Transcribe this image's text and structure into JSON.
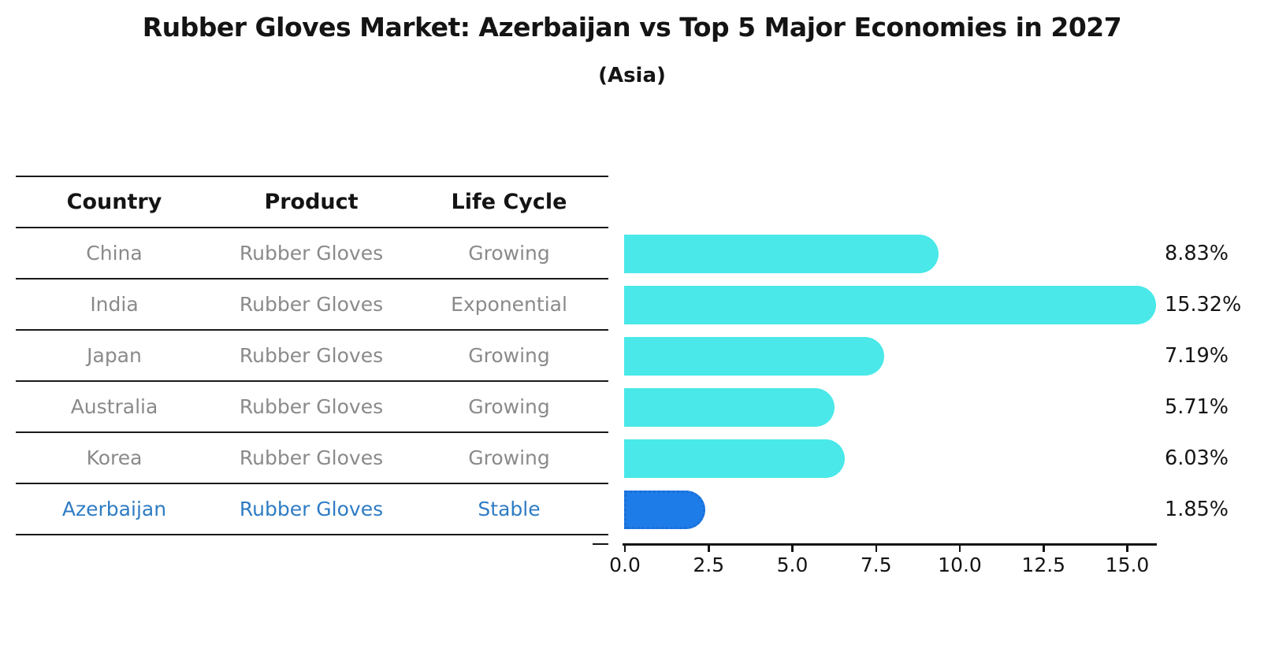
{
  "title": "Rubber Gloves Market: Azerbaijan vs Top 5 Major Economies in 2027",
  "subtitle": "(Asia)",
  "table": {
    "headers": [
      "Country",
      "Product",
      "Life Cycle"
    ],
    "rows": [
      {
        "country": "China",
        "product": "Rubber Gloves",
        "life_cycle": "Growing",
        "highlight": false
      },
      {
        "country": "India",
        "product": "Rubber Gloves",
        "life_cycle": "Exponential",
        "highlight": false
      },
      {
        "country": "Japan",
        "product": "Rubber Gloves",
        "life_cycle": "Growing",
        "highlight": false
      },
      {
        "country": "Australia",
        "product": "Rubber Gloves",
        "life_cycle": "Growing",
        "highlight": false
      },
      {
        "country": "Korea",
        "product": "Rubber Gloves",
        "life_cycle": "Growing",
        "highlight": false
      },
      {
        "country": "Azerbaijan",
        "product": "Rubber Gloves",
        "life_cycle": "Stable",
        "highlight": true
      }
    ]
  },
  "chart_data": {
    "type": "bar",
    "orientation": "horizontal",
    "categories": [
      "China",
      "India",
      "Japan",
      "Australia",
      "Korea",
      "Azerbaijan"
    ],
    "values": [
      8.83,
      15.32,
      7.19,
      5.71,
      6.03,
      1.85
    ],
    "value_labels": [
      "8.83%",
      "15.32%",
      "7.19%",
      "5.71%",
      "6.03%",
      "1.85%"
    ],
    "x_ticks": [
      "0.0",
      "2.5",
      "5.0",
      "7.5",
      "10.0",
      "12.5",
      "15.0"
    ],
    "xlim": [
      0,
      16
    ],
    "grid": "off",
    "legend": "none",
    "highlight_index": 5,
    "title": "Rubber Gloves Market: Azerbaijan vs Top 5 Major Economies in 2027",
    "subtitle": "(Asia)",
    "xlabel": "",
    "ylabel": ""
  },
  "colors": {
    "bar": "#4AE8E8",
    "highlight_bar": "#1E7CE8",
    "highlight_text": "#2E7CC4",
    "table_text": "#8A8A8A",
    "header_text": "#141414",
    "axis": "#141414"
  }
}
